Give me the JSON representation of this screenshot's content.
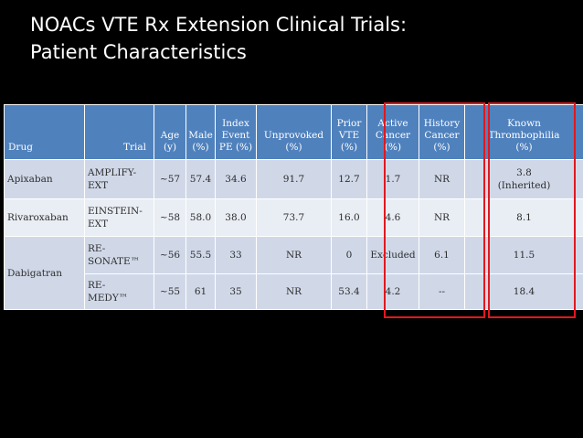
{
  "title": {
    "line1": "NOACs VTE Rx Extension Clinical  Trials:",
    "line2": "Patient Characteristics"
  },
  "table": {
    "headers": [
      "Drug",
      "Trial",
      "Age\n(y)",
      "Male\n(%)",
      "Index\nEvent\nPE (%)",
      "Unprovoked\n(%)",
      "Prior\nVTE\n(%)",
      "Active\nCancer\n(%)",
      "History\nCancer\n(%)",
      "Known\nThrombophilia\n(%)"
    ],
    "rows": [
      {
        "drug": "Apixaban",
        "trial": "AMPLIFY-\nEXT",
        "age": "~57",
        "male": "57.4",
        "pe": "34.6",
        "unprovoked": "91.7",
        "prior_vte": "12.7",
        "active_cancer": "1.7",
        "history_cancer": "NR",
        "thrombophilia": "3.8\n(Inherited)"
      },
      {
        "drug": "Rivaroxaban",
        "trial": "EINSTEIN-\nEXT",
        "age": "~58",
        "male": "58.0",
        "pe": "38.0",
        "unprovoked": "73.7",
        "prior_vte": "16.0",
        "active_cancer": "4.6",
        "history_cancer": "NR",
        "thrombophilia": "8.1"
      },
      {
        "drug": "Dabigatran",
        "trial": "RE-\nSONATE™",
        "age": "~56",
        "male": "55.5",
        "pe": "33",
        "unprovoked": "NR",
        "prior_vte": "0",
        "active_cancer": "Excluded",
        "history_cancer": "6.1",
        "thrombophilia": "11.5"
      },
      {
        "trial": "RE-\nMEDY™",
        "age": "~55",
        "male": "61",
        "pe": "35",
        "unprovoked": "NR",
        "prior_vte": "53.4",
        "active_cancer": "4.2",
        "history_cancer": "--",
        "thrombophilia": "18.4"
      }
    ]
  },
  "highlight_color": "#e0181e"
}
